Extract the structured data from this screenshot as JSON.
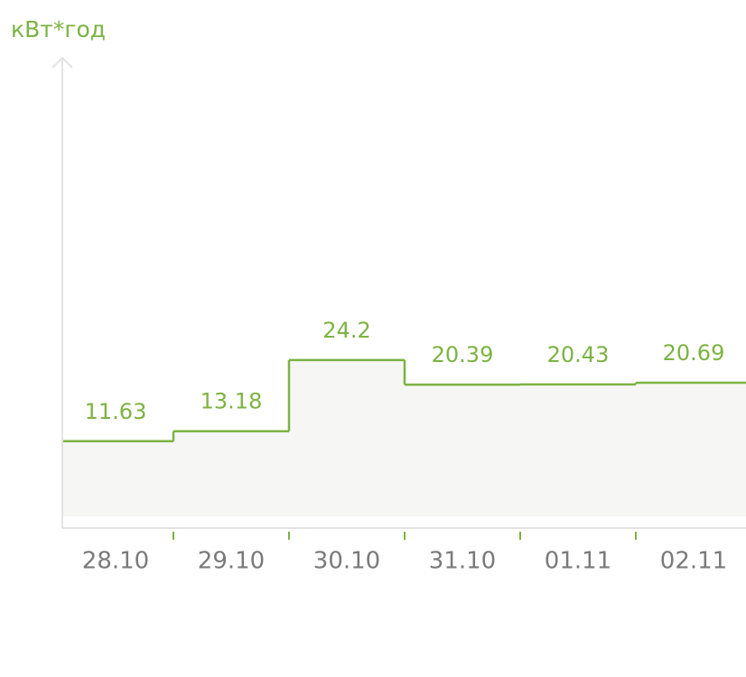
{
  "chart_data": {
    "type": "step",
    "y_label": "кВт*год",
    "categories": [
      "28.10",
      "29.10",
      "30.10",
      "31.10",
      "01.11",
      "02.11"
    ],
    "values": [
      11.63,
      13.18,
      24.2,
      20.39,
      20.43,
      20.69
    ],
    "color": "#7cb342",
    "ylim": [
      0,
      71
    ]
  }
}
